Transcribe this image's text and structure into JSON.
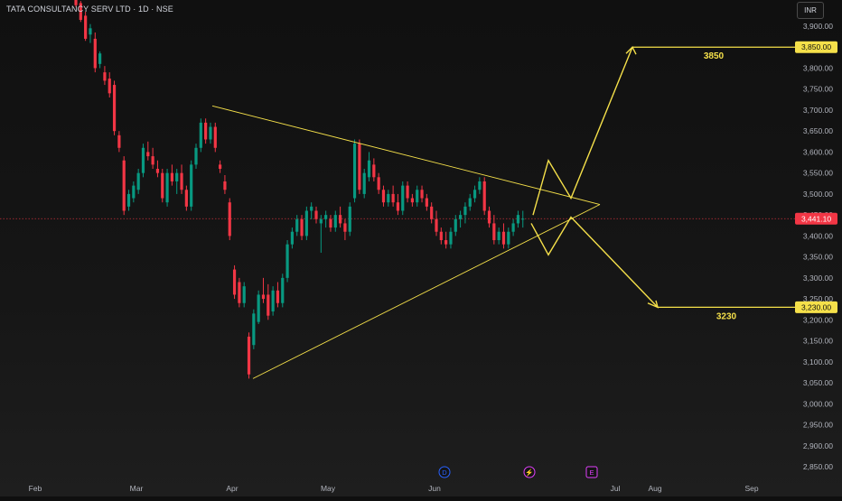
{
  "header": {
    "symbol_title": "TATA CONSULTANCY SERV LTD · 1D · NSE",
    "currency": "INR"
  },
  "chart_data": {
    "type": "candlestick",
    "title": "TATA CONSULTANCY SERV LTD · 1D · NSE",
    "x_axis": {
      "labels": [
        "Feb",
        "Mar",
        "Apr",
        "May",
        "Jun",
        "Jul",
        "Aug",
        "Sep"
      ]
    },
    "y_axis": {
      "range": [
        2825,
        3975
      ],
      "ticks": [
        "3,900.00",
        "3,850.00",
        "3,800.00",
        "3,750.00",
        "3,700.00",
        "3,650.00",
        "3,600.00",
        "3,550.00",
        "3,500.00",
        "3,450.00",
        "3,400.00",
        "3,350.00",
        "3,300.00",
        "3,250.00",
        "3,200.00",
        "3,150.00",
        "3,100.00",
        "3,050.00",
        "3,000.00",
        "2,950.00",
        "2,900.00",
        "2,850.00"
      ]
    },
    "last_price": {
      "value": 3441.1,
      "label": "3,441.10",
      "color": "#f23645"
    },
    "colors": {
      "up": "#089981",
      "down": "#f23645",
      "drawing": "#f5e04a"
    },
    "candles": [
      [
        3985,
        3995,
        3945,
        3950
      ],
      [
        3955,
        3960,
        3910,
        3915
      ],
      [
        3925,
        3935,
        3865,
        3870
      ],
      [
        3880,
        3905,
        3860,
        3895
      ],
      [
        3870,
        3885,
        3790,
        3800
      ],
      [
        3810,
        3840,
        3800,
        3835
      ],
      [
        3790,
        3805,
        3760,
        3770
      ],
      [
        3775,
        3790,
        3730,
        3740
      ],
      [
        3760,
        3770,
        3640,
        3650
      ],
      [
        3640,
        3650,
        3600,
        3610
      ],
      [
        3580,
        3590,
        3450,
        3460
      ],
      [
        3470,
        3510,
        3460,
        3500
      ],
      [
        3490,
        3530,
        3480,
        3520
      ],
      [
        3510,
        3560,
        3500,
        3550
      ],
      [
        3550,
        3620,
        3540,
        3610
      ],
      [
        3600,
        3625,
        3580,
        3590
      ],
      [
        3590,
        3610,
        3560,
        3570
      ],
      [
        3560,
        3580,
        3540,
        3550
      ],
      [
        3550,
        3560,
        3480,
        3490
      ],
      [
        3480,
        3560,
        3470,
        3550
      ],
      [
        3550,
        3570,
        3520,
        3530
      ],
      [
        3530,
        3560,
        3500,
        3550
      ],
      [
        3550,
        3570,
        3500,
        3510
      ],
      [
        3510,
        3520,
        3460,
        3470
      ],
      [
        3470,
        3580,
        3460,
        3570
      ],
      [
        3570,
        3620,
        3560,
        3610
      ],
      [
        3610,
        3680,
        3600,
        3670
      ],
      [
        3670,
        3680,
        3620,
        3630
      ],
      [
        3630,
        3670,
        3620,
        3660
      ],
      [
        3660,
        3670,
        3600,
        3610
      ],
      [
        3570,
        3580,
        3550,
        3560
      ],
      [
        3530,
        3545,
        3500,
        3510
      ],
      [
        3480,
        3490,
        3390,
        3400
      ],
      [
        3320,
        3330,
        3250,
        3260
      ],
      [
        3290,
        3300,
        3230,
        3240
      ],
      [
        3240,
        3290,
        3230,
        3280
      ],
      [
        3160,
        3170,
        3060,
        3070
      ],
      [
        3140,
        3225,
        3130,
        3215
      ],
      [
        3195,
        3270,
        3190,
        3260
      ],
      [
        3260,
        3300,
        3240,
        3250
      ],
      [
        3260,
        3285,
        3200,
        3210
      ],
      [
        3220,
        3280,
        3210,
        3270
      ],
      [
        3270,
        3290,
        3230,
        3240
      ],
      [
        3240,
        3310,
        3230,
        3300
      ],
      [
        3300,
        3390,
        3290,
        3380
      ],
      [
        3380,
        3420,
        3370,
        3410
      ],
      [
        3410,
        3450,
        3400,
        3440
      ],
      [
        3440,
        3450,
        3390,
        3400
      ],
      [
        3400,
        3470,
        3390,
        3460
      ],
      [
        3460,
        3480,
        3440,
        3470
      ],
      [
        3460,
        3470,
        3430,
        3440
      ],
      [
        3430,
        3450,
        3360,
        3440
      ],
      [
        3440,
        3460,
        3420,
        3450
      ],
      [
        3440,
        3450,
        3410,
        3420
      ],
      [
        3420,
        3460,
        3410,
        3450
      ],
      [
        3450,
        3470,
        3420,
        3430
      ],
      [
        3430,
        3440,
        3390,
        3410
      ],
      [
        3410,
        3480,
        3400,
        3470
      ],
      [
        3490,
        3630,
        3480,
        3620
      ],
      [
        3620,
        3630,
        3500,
        3510
      ],
      [
        3500,
        3560,
        3490,
        3550
      ],
      [
        3540,
        3600,
        3530,
        3580
      ],
      [
        3570,
        3585,
        3530,
        3540
      ],
      [
        3540,
        3550,
        3500,
        3510
      ],
      [
        3510,
        3520,
        3470,
        3480
      ],
      [
        3480,
        3510,
        3470,
        3500
      ],
      [
        3500,
        3520,
        3470,
        3480
      ],
      [
        3480,
        3500,
        3450,
        3460
      ],
      [
        3460,
        3530,
        3450,
        3520
      ],
      [
        3520,
        3530,
        3480,
        3490
      ],
      [
        3490,
        3500,
        3470,
        3480
      ],
      [
        3480,
        3520,
        3470,
        3510
      ],
      [
        3510,
        3520,
        3480,
        3490
      ],
      [
        3490,
        3500,
        3460,
        3470
      ],
      [
        3470,
        3480,
        3430,
        3440
      ],
      [
        3440,
        3460,
        3400,
        3410
      ],
      [
        3410,
        3420,
        3380,
        3390
      ],
      [
        3390,
        3410,
        3370,
        3380
      ],
      [
        3380,
        3420,
        3370,
        3410
      ],
      [
        3410,
        3450,
        3400,
        3440
      ],
      [
        3440,
        3460,
        3420,
        3450
      ],
      [
        3450,
        3480,
        3430,
        3470
      ],
      [
        3470,
        3500,
        3460,
        3490
      ],
      [
        3490,
        3520,
        3480,
        3510
      ],
      [
        3510,
        3540,
        3500,
        3530
      ],
      [
        3530,
        3540,
        3450,
        3460
      ],
      [
        3460,
        3470,
        3420,
        3430
      ],
      [
        3430,
        3450,
        3380,
        3390
      ],
      [
        3390,
        3420,
        3380,
        3410
      ],
      [
        3410,
        3430,
        3370,
        3380
      ],
      [
        3380,
        3420,
        3370,
        3410
      ],
      [
        3410,
        3440,
        3400,
        3430
      ],
      [
        3430,
        3460,
        3420,
        3450
      ],
      [
        3440,
        3460,
        3420,
        3441.1
      ]
    ],
    "drawings": {
      "triangle_upper": [
        [
          3710,
          "Mar 25"
        ],
        [
          3475,
          "Jul 14"
        ]
      ],
      "triangle_lower": [
        [
          3060,
          "Apr 4"
        ],
        [
          3475,
          "Jul 14"
        ]
      ],
      "projection_up": {
        "target": 3850,
        "label": "3850",
        "axis_label": "3,850.00"
      },
      "projection_down": {
        "target": 3230,
        "label": "3230",
        "axis_label": "3,230.00"
      }
    },
    "markers": [
      {
        "text": "D",
        "color": "#2962ff"
      },
      {
        "text": "⚡",
        "color": "#e040fb"
      },
      {
        "text": "E",
        "color": "#e040fb"
      }
    ]
  }
}
